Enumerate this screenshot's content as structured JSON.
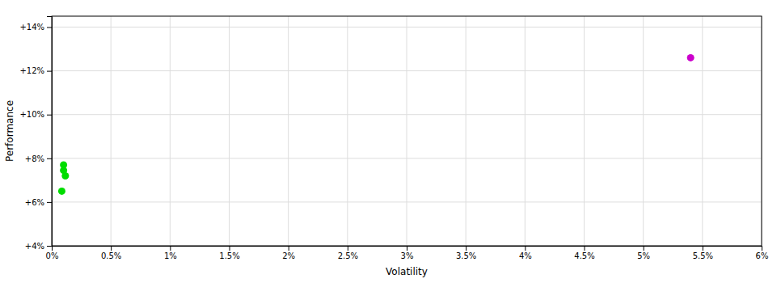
{
  "chart_data": {
    "type": "scatter",
    "xlabel": "Volatility",
    "ylabel": "Performance",
    "xlim": [
      0,
      0.06
    ],
    "ylim": [
      0.04,
      0.145
    ],
    "xticks": [
      {
        "value": 0,
        "label": "0%"
      },
      {
        "value": 0.005,
        "label": "0.5%"
      },
      {
        "value": 0.01,
        "label": "1%"
      },
      {
        "value": 0.015,
        "label": "1.5%"
      },
      {
        "value": 0.02,
        "label": "2%"
      },
      {
        "value": 0.025,
        "label": "2.5%"
      },
      {
        "value": 0.03,
        "label": "3%"
      },
      {
        "value": 0.035,
        "label": "3.5%"
      },
      {
        "value": 0.04,
        "label": "4%"
      },
      {
        "value": 0.045,
        "label": "4.5%"
      },
      {
        "value": 0.05,
        "label": "5%"
      },
      {
        "value": 0.055,
        "label": "5.5%"
      },
      {
        "value": 0.06,
        "label": "6%"
      }
    ],
    "yticks": [
      {
        "value": 0.04,
        "label": "+4%"
      },
      {
        "value": 0.06,
        "label": "+6%"
      },
      {
        "value": 0.08,
        "label": "+8%"
      },
      {
        "value": 0.1,
        "label": "+10%"
      },
      {
        "value": 0.12,
        "label": "+12%"
      },
      {
        "value": 0.14,
        "label": "+14%"
      }
    ],
    "grid": true,
    "series": [
      {
        "color": "#00dd00",
        "x": [
          0.001,
          0.001,
          0.00115,
          0.00085
        ],
        "values": [
          0.077,
          0.0745,
          0.072,
          0.065
        ]
      },
      {
        "color": "#cc00cc",
        "x": [
          0.054
        ],
        "values": [
          0.126
        ]
      }
    ]
  }
}
